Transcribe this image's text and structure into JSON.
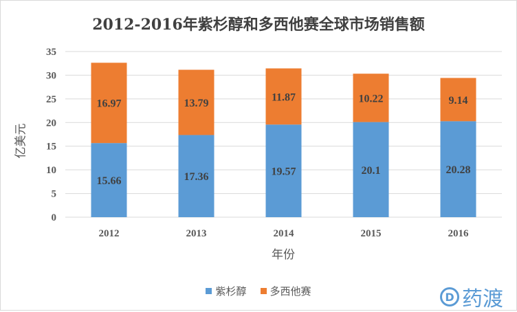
{
  "chart_data": {
    "type": "bar",
    "stacked": true,
    "title": "2012-2016年紫杉醇和多西他赛全球市场销售额",
    "xlabel": "年份",
    "ylabel": "亿美元",
    "categories": [
      "2012",
      "2013",
      "2014",
      "2015",
      "2016"
    ],
    "series": [
      {
        "name": "紫杉醇",
        "color": "#5b9bd5",
        "values": [
          15.66,
          17.36,
          19.57,
          20.1,
          20.28
        ]
      },
      {
        "name": "多西他赛",
        "color": "#ed7d31",
        "values": [
          16.97,
          13.79,
          11.87,
          10.22,
          9.14
        ]
      }
    ],
    "ylim": [
      0,
      35
    ],
    "yticks": [
      0,
      5,
      10,
      15,
      20,
      25,
      30,
      35
    ],
    "grid": true,
    "legend_position": "bottom"
  },
  "logo": {
    "text": "药渡",
    "mark": "D"
  }
}
